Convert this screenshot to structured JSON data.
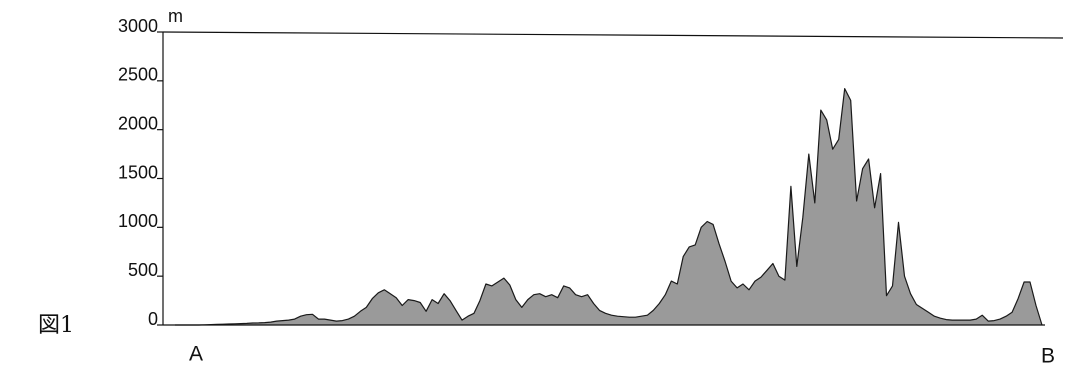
{
  "chart_data": {
    "type": "area",
    "figure_label": "図1",
    "y_unit": "m",
    "start_label": "A",
    "end_label": "B",
    "color": "#9a9a9a",
    "ylim": [
      0,
      3000
    ],
    "yticks": [
      0,
      500,
      1000,
      1500,
      2000,
      2500,
      3000
    ],
    "values": [
      0,
      0,
      0,
      0,
      0,
      2,
      4,
      6,
      8,
      10,
      12,
      14,
      16,
      20,
      22,
      25,
      30,
      40,
      45,
      50,
      60,
      90,
      105,
      110,
      60,
      60,
      50,
      40,
      45,
      60,
      90,
      140,
      180,
      270,
      330,
      360,
      320,
      280,
      200,
      260,
      250,
      230,
      140,
      260,
      220,
      320,
      250,
      150,
      50,
      90,
      120,
      250,
      420,
      400,
      440,
      480,
      410,
      260,
      180,
      260,
      310,
      320,
      290,
      310,
      280,
      400,
      380,
      310,
      290,
      310,
      220,
      150,
      120,
      100,
      90,
      85,
      80,
      80,
      90,
      100,
      150,
      220,
      310,
      450,
      420,
      700,
      800,
      820,
      1000,
      1060,
      1030,
      830,
      650,
      450,
      380,
      420,
      360,
      450,
      490,
      560,
      630,
      500,
      460,
      1420,
      600,
      1100,
      1750,
      1250,
      2200,
      2100,
      1800,
      1900,
      2420,
      2300,
      1270,
      1600,
      1700,
      1200,
      1550,
      300,
      400,
      1050,
      500,
      320,
      210,
      170,
      130,
      90,
      70,
      55,
      50,
      50,
      50,
      50,
      60,
      100,
      40,
      45,
      60,
      90,
      130,
      270,
      440,
      440,
      200,
      0
    ]
  }
}
